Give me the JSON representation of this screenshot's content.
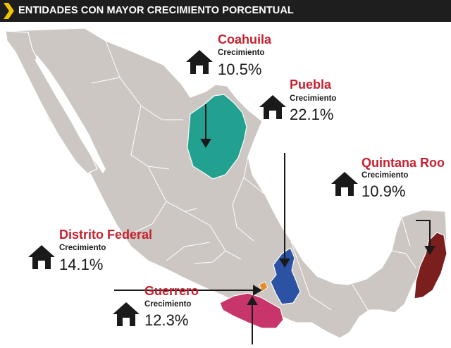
{
  "header": {
    "title": "ENTIDADES CON MAYOR CRECIMIENTO PORCENTUAL"
  },
  "icons": {
    "header_marker": "chevron-right-icon",
    "house": "house-icon"
  },
  "colors": {
    "land": "#cdc7c3",
    "borders": "#ffffff",
    "coahuila": "#22a090",
    "puebla": "#2b52a3",
    "quintana_roo": "#7b1e1e",
    "guerrero": "#c8356a",
    "distrito_federal": "#e58a2a",
    "name_text": "#c8202f"
  },
  "callouts": [
    {
      "id": "coahuila",
      "name": "Coahuila",
      "label": "Crecimiento",
      "value": "10.5%"
    },
    {
      "id": "puebla",
      "name": "Puebla",
      "label": "Crecimiento",
      "value": "22.1%"
    },
    {
      "id": "quintana-roo",
      "name": "Quintana Roo",
      "label": "Crecimiento",
      "value": "10.9%"
    },
    {
      "id": "distrito-federal",
      "name": "Distrito Federal",
      "label": "Crecimiento",
      "value": "14.1%"
    },
    {
      "id": "guerrero",
      "name": "Guerrero",
      "label": "Crecimiento",
      "value": "12.3%"
    }
  ]
}
